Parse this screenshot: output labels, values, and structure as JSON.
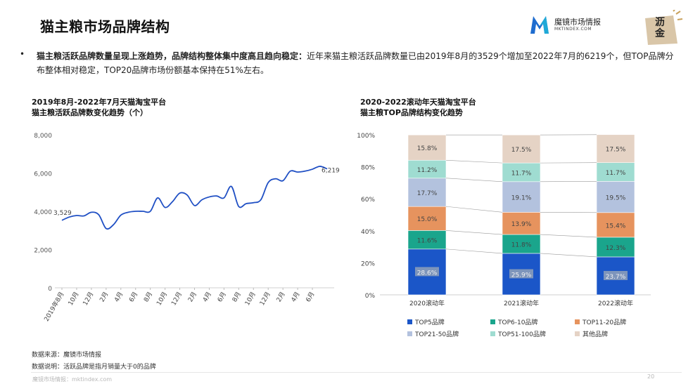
{
  "page": {
    "title": "猫主粮市场品牌结构",
    "logo": {
      "name": "魔镜市场情报",
      "sub": "MKTINDEX.COM",
      "mark": "M"
    },
    "badge": {
      "line1": "沥",
      "line2": "金"
    },
    "summary": {
      "bullet": "•",
      "bold": "猫主粮活跃品牌数量呈现上涨趋势，品牌结构整体集中度高且趋向稳定：",
      "text": "近年来猫主粮活跃品牌数量已由2019年8月的3529个增加至2022年7月的6219个，但TOP品牌分布整体相对稳定，TOP20品牌市场份额基本保持在51%左右。"
    },
    "footnotes": {
      "source": "数据来源：魔镜市场情报",
      "note": "数据说明：活跃品牌是指月销量大于0的品牌"
    },
    "footer": {
      "text": "魔镜市场情报：mktindex.com",
      "page_number": "20"
    }
  },
  "colors": {
    "line": "#1f4fc4",
    "top5": "#1b56c8",
    "top6_10": "#1aa58c",
    "top11_20": "#e6935e",
    "top21_50": "#b3c2de",
    "top51_100": "#9fdcd1",
    "other": "#e5d3c5"
  },
  "chart_data": [
    {
      "type": "line",
      "title_line1": "2019年8月-2022年7月天猫淘宝平台",
      "title_line2": "猫主粮活跃品牌数变化趋势（个）",
      "ylim": [
        0,
        8000
      ],
      "yticks": [
        "0",
        "2,000",
        "4,000",
        "6,000",
        "8,000"
      ],
      "ytick_values": [
        0,
        2000,
        4000,
        6000,
        8000
      ],
      "xtick_labels": [
        "2019年8月",
        "10月",
        "12月",
        "2月",
        "4月",
        "6月",
        "8月",
        "10月",
        "12月",
        "2月",
        "4月",
        "6月",
        "8月",
        "10月",
        "12月",
        "2月",
        "4月",
        "6月"
      ],
      "values": [
        3529,
        3700,
        3780,
        3760,
        3950,
        3820,
        3100,
        3300,
        3800,
        3950,
        4000,
        4000,
        4000,
        4700,
        4200,
        4500,
        4950,
        4850,
        4300,
        4600,
        4750,
        4800,
        4700,
        5300,
        4250,
        4400,
        4450,
        4600,
        5500,
        5700,
        5600,
        6100,
        6050,
        6100,
        6200,
        6350,
        6219
      ],
      "start_label": "3,529",
      "end_label": "6,219"
    },
    {
      "type": "stacked-bar",
      "title_line1": "2020-2022滚动年天猫淘宝平台",
      "title_line2": "猫主粮TOP品牌结构变化趋势",
      "categories": [
        "2020滚动年",
        "2021滚动年",
        "2022滚动年"
      ],
      "yticks": [
        "0%",
        "20%",
        "40%",
        "60%",
        "80%",
        "100%"
      ],
      "ytick_values": [
        0,
        20,
        40,
        60,
        80,
        100
      ],
      "series": [
        {
          "name": "TOP5品牌",
          "color_key": "top5",
          "values": [
            28.6,
            25.9,
            23.7
          ],
          "labels": [
            "28.6%",
            "25.9%",
            "23.7%"
          ]
        },
        {
          "name": "TOP6-10品牌",
          "color_key": "top6_10",
          "values": [
            11.6,
            11.8,
            12.3
          ],
          "labels": [
            "11.6%",
            "11.8%",
            "12.3%"
          ]
        },
        {
          "name": "TOP11-20品牌",
          "color_key": "top11_20",
          "values": [
            15.0,
            13.9,
            15.4
          ],
          "labels": [
            "15.0%",
            "13.9%",
            "15.4%"
          ]
        },
        {
          "name": "TOP21-50品牌",
          "color_key": "top21_50",
          "values": [
            17.7,
            19.1,
            19.5
          ],
          "labels": [
            "17.7%",
            "19.1%",
            "19.5%"
          ]
        },
        {
          "name": "TOP51-100品牌",
          "color_key": "top51_100",
          "values": [
            11.2,
            11.7,
            11.7
          ],
          "labels": [
            "11.2%",
            "11.7%",
            "11.7%"
          ]
        },
        {
          "name": "其他品牌",
          "color_key": "other",
          "values": [
            15.8,
            17.5,
            17.5
          ],
          "labels": [
            "15.8%",
            "17.5%",
            "17.5%"
          ]
        }
      ]
    }
  ]
}
